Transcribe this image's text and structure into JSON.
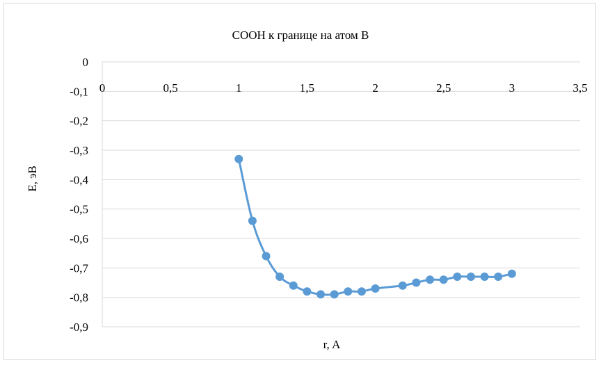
{
  "chart_data": {
    "type": "scatter",
    "title": "СООН к границе на атом В",
    "xlabel": "r, A",
    "ylabel": "E, эВ",
    "xlim": [
      0,
      3.5
    ],
    "ylim": [
      -0.9,
      0
    ],
    "x_ticks": [
      "0",
      "0,5",
      "1",
      "1,5",
      "2",
      "2,5",
      "3",
      "3,5"
    ],
    "y_ticks": [
      "0",
      "-0,1",
      "-0,2",
      "-0,3",
      "-0,4",
      "-0,5",
      "-0,6",
      "-0,7",
      "-0,8",
      "-0,9"
    ],
    "grid": true,
    "smooth": true,
    "marker_color": "#5b9bd5",
    "series": [
      {
        "x": [
          1.0,
          1.1,
          1.2,
          1.3,
          1.4,
          1.5,
          1.6,
          1.7,
          1.8,
          1.9,
          2.0,
          2.2,
          2.3,
          2.4,
          2.5,
          2.6,
          2.7,
          2.8,
          2.9,
          3.0
        ],
        "y": [
          -0.33,
          -0.54,
          -0.66,
          -0.73,
          -0.76,
          -0.78,
          -0.79,
          -0.79,
          -0.78,
          -0.78,
          -0.77,
          -0.76,
          -0.75,
          -0.74,
          -0.74,
          -0.73,
          -0.73,
          -0.73,
          -0.73,
          -0.72
        ]
      }
    ]
  }
}
